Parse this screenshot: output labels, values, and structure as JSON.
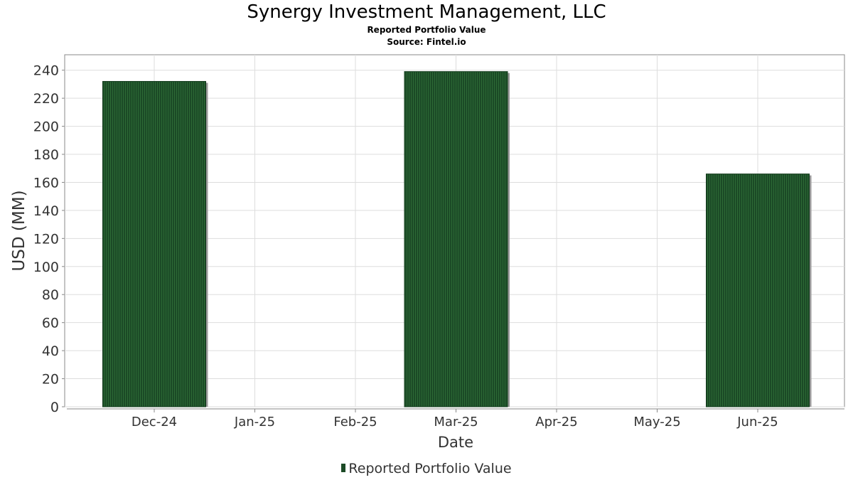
{
  "chart_data": {
    "type": "bar",
    "title": "Synergy Investment Management, LLC",
    "subtitles": [
      "Reported Portfolio Value",
      "Source: Fintel.io"
    ],
    "xlabel": "Date",
    "ylabel": "USD (MM)",
    "x_ticks": [
      "Dec-24",
      "Jan-25",
      "Feb-25",
      "Mar-25",
      "Apr-25",
      "May-25",
      "Jun-25"
    ],
    "y_ticks": [
      0,
      20,
      40,
      60,
      80,
      100,
      120,
      140,
      160,
      180,
      200,
      220,
      240
    ],
    "ylim": [
      0,
      251
    ],
    "grid": true,
    "legend_position": "bottom-center",
    "series": [
      {
        "name": "Reported Portfolio Value",
        "color": "#1b4a26",
        "points": [
          {
            "x": "Dec-24",
            "value": 232
          },
          {
            "x": "Mar-25",
            "value": 239
          },
          {
            "x": "Jun-25",
            "value": 166
          }
        ]
      }
    ]
  }
}
